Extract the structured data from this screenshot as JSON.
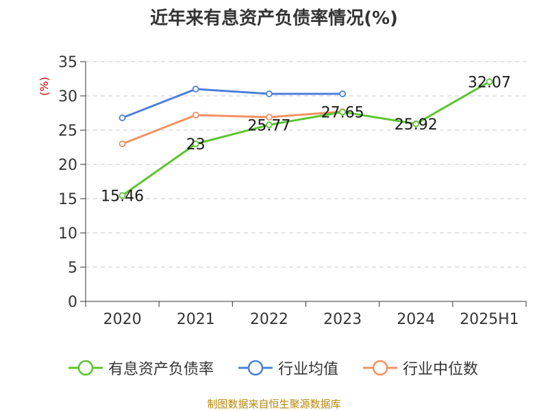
{
  "chart_data": {
    "type": "line",
    "title": "近年来有息资产负债率情况(%)",
    "ylabel": "(%)",
    "categories": [
      "2020",
      "2021",
      "2022",
      "2023",
      "2024",
      "2025H1"
    ],
    "ylim": [
      0,
      35
    ],
    "yticks": [
      0,
      5,
      10,
      15,
      20,
      25,
      30,
      35
    ],
    "grid": true,
    "legend_position": "bottom",
    "series": [
      {
        "name": "有息资产负债率",
        "color": "#5ac52e",
        "values": [
          15.46,
          23,
          25.77,
          27.65,
          25.92,
          32.07
        ],
        "labels": [
          "15.46",
          "23",
          "25.77",
          "27.65",
          "25.92",
          "32.07"
        ]
      },
      {
        "name": "行业均值",
        "color": "#4a7fd8",
        "values": [
          26.8,
          31.0,
          30.3,
          30.3,
          null,
          null
        ]
      },
      {
        "name": "行业中位数",
        "color": "#f49060",
        "values": [
          23.0,
          27.2,
          26.9,
          27.7,
          null,
          null
        ]
      }
    ]
  },
  "footer": {
    "source": "制图数据来自恒生聚源数据库"
  }
}
